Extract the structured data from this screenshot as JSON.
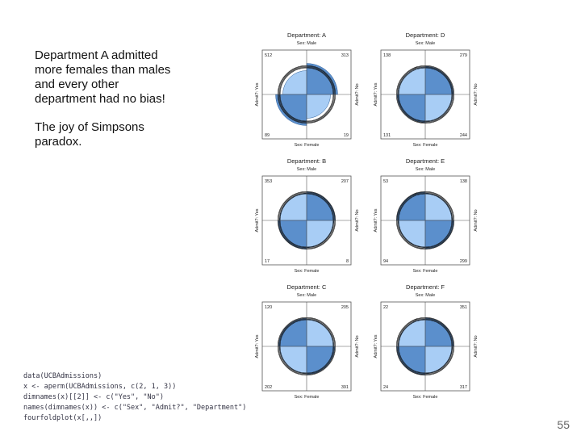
{
  "note": {
    "lines": [
      "Department A admitted",
      "more females than males",
      "and every other",
      "department had no bias!",
      "",
      "The joy of Simpsons",
      "paradox."
    ]
  },
  "code_lines": [
    "data(UCBAdmissions)",
    "x <- aperm(UCBAdmissions, c(2, 1, 3))",
    "dimnames(x)[[2]] <- c(\"Yes\", \"No\")",
    "names(dimnames(x)) <- c(\"Sex\", \"Admit?\", \"Department\")",
    "fourfoldplot(x[,,])"
  ],
  "slide_number": "55",
  "colors": {
    "dark": "#5b8fcc",
    "light": "#a8cdf5",
    "axis": "#555555"
  },
  "chart_data": {
    "type": "fourfold",
    "row_header": "Sex: Male",
    "bottom_header": "Sex: Female",
    "left_label": "Admit?: Yes",
    "right_label": "Admit?: No",
    "panels": [
      {
        "department": "Department: A",
        "male_yes": 512,
        "male_no": 313,
        "female_yes": 89,
        "female_no": 19
      },
      {
        "department": "Department: D",
        "male_yes": 138,
        "male_no": 279,
        "female_yes": 131,
        "female_no": 244
      },
      {
        "department": "Department: B",
        "male_yes": 353,
        "male_no": 207,
        "female_yes": 17,
        "female_no": 8
      },
      {
        "department": "Department: E",
        "male_yes": 53,
        "male_no": 138,
        "female_yes": 94,
        "female_no": 299
      },
      {
        "department": "Department: C",
        "male_yes": 120,
        "male_no": 205,
        "female_yes": 202,
        "female_no": 391
      },
      {
        "department": "Department: F",
        "male_yes": 22,
        "male_no": 351,
        "female_yes": 24,
        "female_no": 317
      }
    ]
  }
}
